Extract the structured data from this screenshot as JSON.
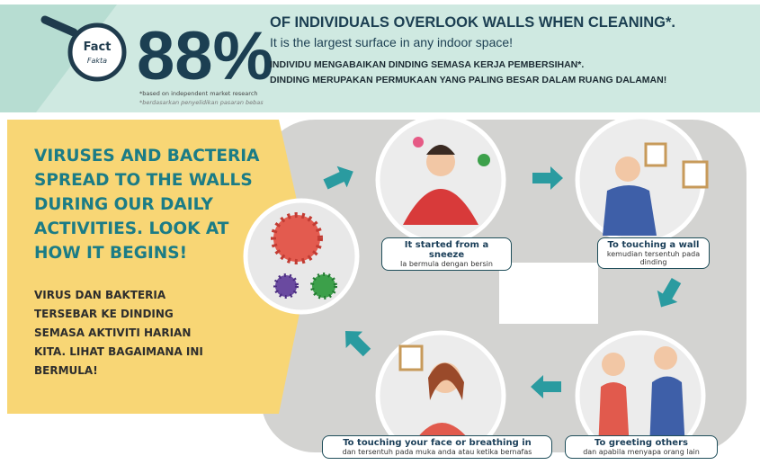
{
  "header": {
    "badge": "Fact",
    "badge_sub": "Fakta",
    "stat": "88%",
    "headline": "OF INDIVIDUALS OVERLOOK WALLS WHEN CLEANING*.",
    "subline": "It is the largest surface in any indoor space!",
    "headline_ms": "INDIVIDU MENGABAIKAN DINDING SEMASA KERJA PEMBERSIHAN*.",
    "subline_ms": "DINDING MERUPAKAN PERMUKAAN YANG PALING BESAR DALAM RUANG DALAMAN!",
    "footnote": "*based on independent market research",
    "footnote_ms": "*berdasarkan penyelidikan pasaran bebas"
  },
  "intro": {
    "text": "VIRUSES AND BACTERIA SPREAD TO THE WALLS DURING OUR DAILY ACTIVITIES. LOOK AT HOW IT BEGINS!",
    "text_ms": "VIRUS DAN BAKTERIA TERSEBAR KE DINDING SEMASA AKTIVITI HARIAN KITA. LIHAT BAGAIMANA INI BERMULA!"
  },
  "steps": [
    {
      "title": "It started from a sneeze",
      "subtitle": "Ia bermula dengan bersin"
    },
    {
      "title": "To touching a wall",
      "subtitle": "kemudian tersentuh pada dinding"
    },
    {
      "title": "To greeting others",
      "subtitle": "dan apabila menyapa orang lain"
    },
    {
      "title": "To touching your face or breathing in",
      "subtitle": "dan tersentuh pada muka anda atau ketika bernafas"
    }
  ]
}
